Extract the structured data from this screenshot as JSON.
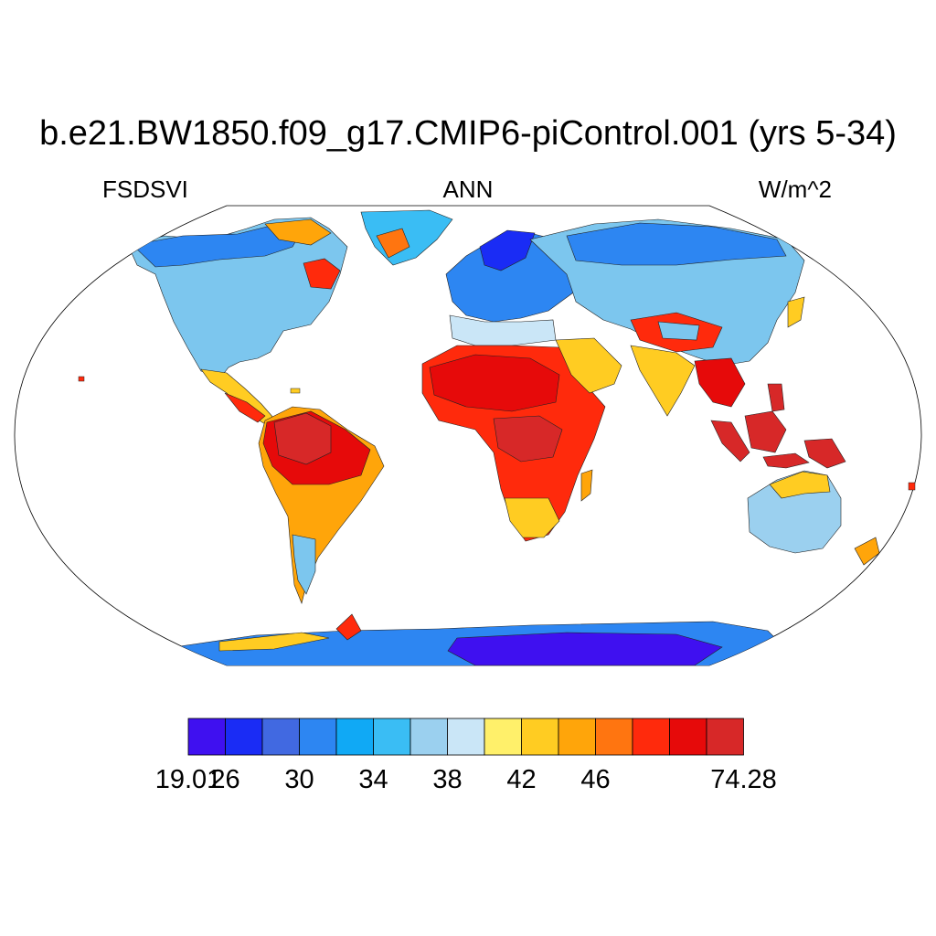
{
  "title": "b.e21.BW1850.f09_g17.CMIP6-piControl.001 (yrs 5-34)",
  "left_label": "FSDSVI",
  "center_label": "ANN",
  "right_label": "W/m^2",
  "colorbar": {
    "colors": [
      "#3f10f0",
      "#1a2cf5",
      "#4169e1",
      "#2d86f2",
      "#10a9f5",
      "#3abdf4",
      "#9bd0ef",
      "#cae6f7",
      "#fff06a",
      "#ffcc22",
      "#ffa50a",
      "#ff7510",
      "#ff2a0c",
      "#e60a0a",
      "#d72828"
    ],
    "labels": [
      {
        "text": "19.01",
        "boundary": 0
      },
      {
        "text": "26",
        "boundary": 1
      },
      {
        "text": "30",
        "boundary": 3
      },
      {
        "text": "34",
        "boundary": 5
      },
      {
        "text": "38",
        "boundary": 7
      },
      {
        "text": "42",
        "boundary": 9
      },
      {
        "text": "46",
        "boundary": 11
      },
      {
        "text": "74.28",
        "boundary": 15
      }
    ]
  }
}
